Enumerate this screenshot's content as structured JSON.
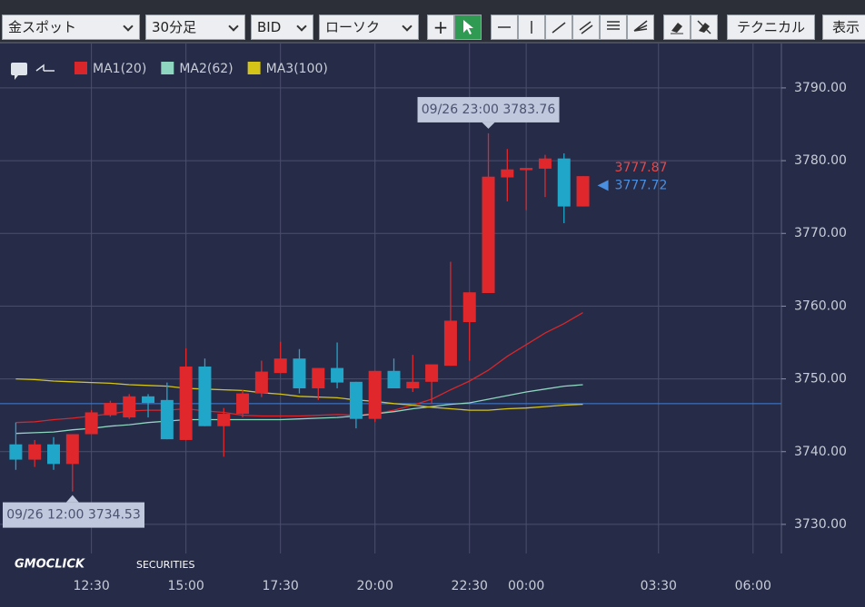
{
  "toolbar": {
    "symbol": "金スポット",
    "timeframe": "30分足",
    "price_type": "BID",
    "chart_style": "ローソク",
    "technical": "テクニカル",
    "display": "表示"
  },
  "logo": {
    "name": "GMOCLICK",
    "suffix": "SECURITIES"
  },
  "chart_data": {
    "type": "candlestick",
    "categories": [
      null,
      null,
      null,
      null,
      "12:30",
      null,
      null,
      null,
      null,
      "15:00",
      null,
      null,
      null,
      null,
      "17:30",
      null,
      null,
      null,
      null,
      "20:00",
      null,
      null,
      null,
      null,
      "22:30",
      null,
      null,
      "00:00",
      null,
      null,
      null,
      null,
      null,
      null,
      "03:30",
      null,
      null,
      null,
      null,
      "06:00",
      null
    ],
    "open": [
      3741.0,
      3738.9,
      3741.0,
      3738.3,
      3742.4,
      3745.0,
      3744.7,
      3747.6,
      3747.1,
      3741.6,
      3751.7,
      3743.5,
      3745.2,
      3748.0,
      3750.8,
      3752.8,
      3748.7,
      3751.5,
      3749.6,
      3744.5,
      3751.1,
      3748.7,
      3749.6,
      3751.8,
      3757.8,
      3761.8,
      3777.7,
      3778.7,
      3778.9,
      3780.3,
      3773.7,
      null,
      null,
      null,
      null,
      null,
      null,
      null,
      null,
      null,
      null
    ],
    "high": [
      3744.0,
      3741.6,
      3742.0,
      3742.4,
      3745.7,
      3747.0,
      3747.9,
      3747.9,
      3749.5,
      3754.2,
      3752.8,
      3746.0,
      3748.5,
      3752.5,
      3755.1,
      3754.1,
      3751.5,
      3755.0,
      3749.6,
      3751.1,
      3752.8,
      3753.3,
      3752.0,
      3766.1,
      3761.9,
      3783.76,
      3781.6,
      3779.0,
      3780.8,
      3781.0,
      3777.87,
      null,
      null,
      null,
      null,
      null,
      null,
      null,
      null,
      null,
      null
    ],
    "low": [
      3737.5,
      3737.9,
      3737.5,
      3734.53,
      3742.4,
      3744.8,
      3744.5,
      3744.7,
      3741.7,
      3741.6,
      3743.5,
      3739.3,
      3744.7,
      3747.5,
      3750.8,
      3748.0,
      3747.1,
      3748.7,
      3743.2,
      3744.1,
      3748.7,
      3748.2,
      3746.6,
      3751.8,
      3752.5,
      3761.8,
      3774.4,
      3773.2,
      3775.0,
      3771.4,
      3773.7,
      null,
      null,
      null,
      null,
      null,
      null,
      null,
      null,
      null,
      null
    ],
    "close": [
      3738.9,
      3741.0,
      3738.3,
      3742.4,
      3745.4,
      3746.7,
      3747.6,
      3746.7,
      3741.7,
      3751.7,
      3743.5,
      3745.2,
      3748.0,
      3751.0,
      3752.8,
      3748.7,
      3751.5,
      3749.5,
      3744.5,
      3751.1,
      3748.7,
      3749.6,
      3752.0,
      3758.0,
      3761.9,
      3777.8,
      3778.8,
      3779.0,
      3780.3,
      3773.7,
      3777.87,
      null,
      null,
      null,
      null,
      null,
      null,
      null,
      null,
      null,
      null
    ],
    "up_color": "#e0282c",
    "down_color": "#1fa6c9",
    "series": [
      {
        "name": "MA1(20)",
        "color": "#d9262a",
        "values": [
          3744.0,
          3744.1,
          3744.4,
          3744.6,
          3744.9,
          3745.2,
          3745.6,
          3745.7,
          3745.7,
          3745.9,
          3745.6,
          3745.4,
          3745.0,
          3744.9,
          3744.9,
          3744.9,
          3745.0,
          3745.1,
          3745.0,
          3745.2,
          3745.7,
          3746.4,
          3747.2,
          3748.5,
          3749.7,
          3751.2,
          3753.1,
          3754.7,
          3756.3,
          3757.6,
          3759.1,
          null,
          null,
          null,
          null,
          null,
          null,
          null,
          null,
          null,
          null
        ]
      },
      {
        "name": "MA2(62)",
        "color": "#8fd6c0",
        "values": [
          3742.5,
          3742.6,
          3742.7,
          3743.0,
          3743.2,
          3743.5,
          3743.7,
          3744.0,
          3744.2,
          3744.4,
          3744.4,
          3744.4,
          3744.4,
          3744.4,
          3744.4,
          3744.5,
          3744.6,
          3744.7,
          3744.9,
          3745.2,
          3745.5,
          3745.9,
          3746.2,
          3746.5,
          3746.7,
          3747.2,
          3747.7,
          3748.2,
          3748.6,
          3749.0,
          3749.2,
          null,
          null,
          null,
          null,
          null,
          null,
          null,
          null,
          null,
          null
        ]
      },
      {
        "name": "MA3(100)",
        "color": "#d4c418",
        "values": [
          3750.0,
          3749.9,
          3749.7,
          3749.6,
          3749.5,
          3749.4,
          3749.2,
          3749.1,
          3749.0,
          3748.7,
          3748.6,
          3748.5,
          3748.4,
          3748.1,
          3747.9,
          3747.6,
          3747.5,
          3747.4,
          3747.1,
          3746.9,
          3746.6,
          3746.4,
          3746.1,
          3745.9,
          3745.7,
          3745.7,
          3745.9,
          3746.0,
          3746.2,
          3746.4,
          3746.5,
          null,
          null,
          null,
          null,
          null,
          null,
          null,
          null,
          null,
          null
        ]
      }
    ],
    "ylim": [
      3726.0,
      3796.1
    ],
    "yticks": [
      {
        "value": 3730,
        "label": "3730.00"
      },
      {
        "value": 3740,
        "label": "3740.00"
      },
      {
        "value": 3750,
        "label": "3750.00"
      },
      {
        "value": 3760,
        "label": "3760.00"
      },
      {
        "value": 3770,
        "label": "3770.00"
      },
      {
        "value": 3780,
        "label": "3780.00"
      },
      {
        "value": 3790,
        "label": "3790.00"
      }
    ],
    "grid": true,
    "hline": {
      "value": 3746.6,
      "color": "#3f7fd6"
    },
    "last_prices": [
      {
        "value": 3777.87,
        "color": "#e84848"
      },
      {
        "value": 3777.72,
        "color": "#4a8fe0"
      }
    ],
    "annotations": [
      {
        "text": "09/26 23:00 3783.76"
      },
      {
        "text": "09/26 12:00 3734.53"
      }
    ]
  }
}
